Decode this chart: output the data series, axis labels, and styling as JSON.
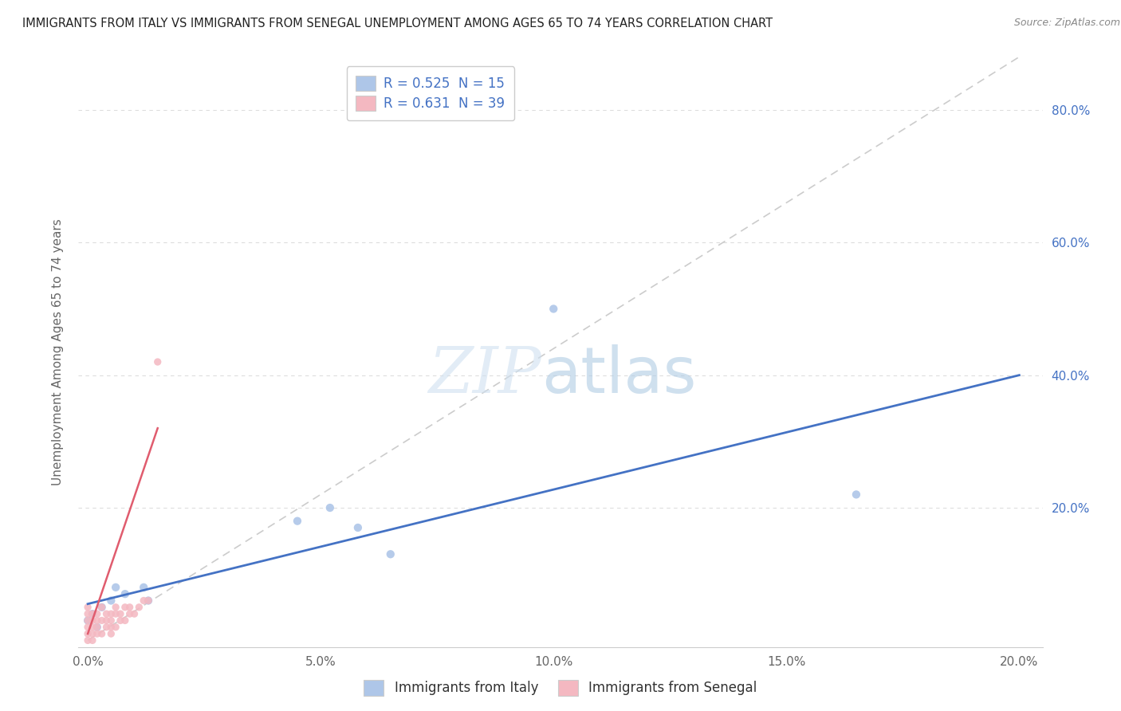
{
  "title": "IMMIGRANTS FROM ITALY VS IMMIGRANTS FROM SENEGAL UNEMPLOYMENT AMONG AGES 65 TO 74 YEARS CORRELATION CHART",
  "source": "Source: ZipAtlas.com",
  "ylabel": "Unemployment Among Ages 65 to 74 years",
  "xlim": [
    -0.002,
    0.205
  ],
  "ylim": [
    -0.01,
    0.88
  ],
  "xtick_labels": [
    "0.0%",
    "5.0%",
    "10.0%",
    "15.0%",
    "20.0%"
  ],
  "xtick_vals": [
    0.0,
    0.05,
    0.1,
    0.15,
    0.2
  ],
  "ytick_labels": [
    "20.0%",
    "40.0%",
    "60.0%",
    "80.0%"
  ],
  "ytick_vals": [
    0.2,
    0.4,
    0.6,
    0.8
  ],
  "legend_italy_label": "Immigrants from Italy",
  "legend_senegal_label": "Immigrants from Senegal",
  "R_italy": 0.525,
  "N_italy": 15,
  "R_senegal": 0.631,
  "N_senegal": 39,
  "italy_color": "#aec6e8",
  "senegal_color": "#f4b8c1",
  "italy_line_color": "#4472c4",
  "senegal_line_color": "#e05c6e",
  "diagonal_color": "#cccccc",
  "background_color": "#ffffff",
  "italy_points_x": [
    0.0,
    0.001,
    0.002,
    0.003,
    0.005,
    0.006,
    0.008,
    0.012,
    0.013,
    0.045,
    0.052,
    0.058,
    0.065,
    0.1,
    0.165
  ],
  "italy_points_y": [
    0.03,
    0.04,
    0.02,
    0.05,
    0.06,
    0.08,
    0.07,
    0.08,
    0.06,
    0.18,
    0.2,
    0.17,
    0.13,
    0.5,
    0.22
  ],
  "senegal_points_x": [
    0.0,
    0.0,
    0.0,
    0.0,
    0.0,
    0.0,
    0.001,
    0.001,
    0.001,
    0.001,
    0.001,
    0.002,
    0.002,
    0.002,
    0.002,
    0.003,
    0.003,
    0.003,
    0.004,
    0.004,
    0.004,
    0.005,
    0.005,
    0.005,
    0.005,
    0.006,
    0.006,
    0.006,
    0.007,
    0.007,
    0.008,
    0.008,
    0.009,
    0.009,
    0.01,
    0.011,
    0.012,
    0.013,
    0.015
  ],
  "senegal_points_y": [
    0.0,
    0.01,
    0.02,
    0.03,
    0.04,
    0.05,
    0.0,
    0.01,
    0.02,
    0.03,
    0.04,
    0.01,
    0.02,
    0.03,
    0.04,
    0.01,
    0.03,
    0.05,
    0.02,
    0.03,
    0.04,
    0.01,
    0.02,
    0.03,
    0.04,
    0.02,
    0.04,
    0.05,
    0.03,
    0.04,
    0.03,
    0.05,
    0.04,
    0.05,
    0.04,
    0.05,
    0.06,
    0.06,
    0.42
  ],
  "italy_line_x": [
    0.0,
    0.2
  ],
  "italy_line_y": [
    0.055,
    0.4
  ],
  "senegal_line_x": [
    0.0,
    0.015
  ],
  "senegal_line_y": [
    0.01,
    0.32
  ],
  "diag_line_x": [
    0.0,
    0.2
  ],
  "diag_line_y": [
    0.0,
    0.88
  ]
}
